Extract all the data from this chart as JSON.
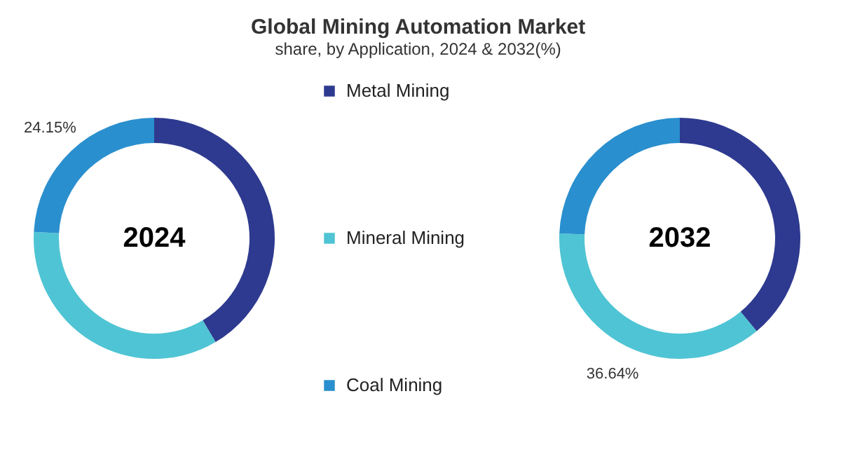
{
  "chart_data": [
    {
      "type": "donut",
      "title": "Global Mining Automation Market",
      "subtitle": "share, by Application, 2024 & 2032(%)",
      "annotations": [
        "2024"
      ],
      "categories": [
        "Metal Mining",
        "Mineral Mining",
        "Coal Mining"
      ],
      "values": [
        41.5,
        34.35,
        24.15
      ],
      "colors": [
        "#2e3a8f",
        "#4fc4d4",
        "#2a8fce"
      ],
      "value_labels": [
        null,
        null,
        "24.15%"
      ],
      "legend": "right"
    },
    {
      "type": "donut",
      "annotations": [
        "2032"
      ],
      "categories": [
        null,
        null,
        null
      ],
      "values": [
        39.0,
        36.64,
        24.36
      ],
      "colors": [
        "#2e3a8f",
        "#4fc4d4",
        "#2a8fce"
      ],
      "value_labels": [
        null,
        "36.64%",
        null
      ]
    }
  ]
}
